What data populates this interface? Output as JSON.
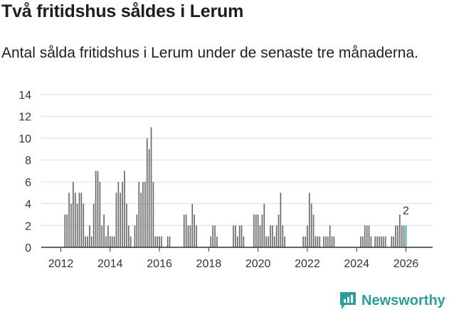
{
  "title": "Två fritidshus såldes i Lerum",
  "subtitle": "Antal sålda fritidshus i Lerum under de senaste tre månaderna.",
  "brand": {
    "name": "Newsworthy",
    "icon": "newsworthy-logo-icon",
    "color": "#2e9c98"
  },
  "chart_data": {
    "type": "bar",
    "title": "Två fritidshus såldes i Lerum",
    "subtitle": "Antal sålda fritidshus i Lerum under de senaste tre månaderna.",
    "xlabel": "",
    "ylabel": "",
    "ylim": [
      0,
      14
    ],
    "yticks": [
      "0",
      "2",
      "4",
      "6",
      "8",
      "10",
      "12",
      "14"
    ],
    "xticks": [
      "2012",
      "2014",
      "2016",
      "2018",
      "2020",
      "2022",
      "2024",
      "2026"
    ],
    "grid": true,
    "start": "2012-01",
    "frequency": "monthly",
    "colors": {
      "default": "#6b6b6e",
      "highlight": "#2aa6a0"
    },
    "highlight_index": 168,
    "annotation": {
      "index": 168,
      "text": "2"
    },
    "values": [
      0,
      0,
      3,
      3,
      5,
      4,
      6,
      5,
      4,
      5,
      5,
      4,
      1,
      1,
      2,
      1,
      4,
      7,
      7,
      6,
      2,
      3,
      1,
      2,
      1,
      1,
      1,
      5,
      6,
      5,
      6,
      7,
      4,
      2,
      1,
      0,
      2,
      3,
      6,
      5,
      6,
      6,
      10,
      9,
      11,
      6,
      1,
      1,
      1,
      1,
      0,
      0,
      1,
      1,
      0,
      0,
      0,
      0,
      0,
      0,
      3,
      3,
      2,
      2,
      4,
      3,
      2,
      0,
      0,
      0,
      0,
      0,
      0,
      1,
      2,
      2,
      1,
      0,
      0,
      0,
      0,
      0,
      0,
      0,
      2,
      2,
      1,
      2,
      2,
      1,
      0,
      0,
      0,
      0,
      3,
      3,
      3,
      2,
      3,
      4,
      1,
      1,
      2,
      2,
      1,
      2,
      3,
      5,
      2,
      1,
      0,
      0,
      0,
      0,
      0,
      0,
      0,
      0,
      1,
      1,
      2,
      5,
      4,
      3,
      1,
      1,
      1,
      0,
      1,
      1,
      1,
      2,
      1,
      1,
      0,
      0,
      0,
      0,
      0,
      0,
      0,
      0,
      0,
      0,
      0,
      0,
      1,
      1,
      2,
      2,
      2,
      1,
      0,
      1,
      1,
      1,
      1,
      1,
      1,
      0,
      0,
      1,
      1,
      2,
      2,
      3,
      2,
      2,
      2,
      0,
      0
    ]
  }
}
